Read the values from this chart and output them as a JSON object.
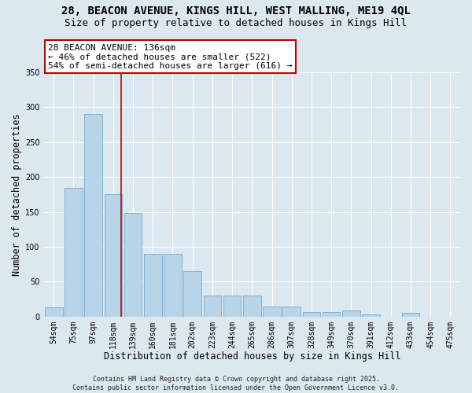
{
  "title_line1": "28, BEACON AVENUE, KINGS HILL, WEST MALLING, ME19 4QL",
  "title_line2": "Size of property relative to detached houses in Kings Hill",
  "xlabel": "Distribution of detached houses by size in Kings Hill",
  "ylabel": "Number of detached properties",
  "categories": [
    "54sqm",
    "75sqm",
    "97sqm",
    "118sqm",
    "139sqm",
    "160sqm",
    "181sqm",
    "202sqm",
    "223sqm",
    "244sqm",
    "265sqm",
    "286sqm",
    "307sqm",
    "328sqm",
    "349sqm",
    "370sqm",
    "391sqm",
    "412sqm",
    "433sqm",
    "454sqm",
    "475sqm"
  ],
  "values": [
    13,
    185,
    290,
    175,
    148,
    90,
    90,
    65,
    30,
    30,
    30,
    14,
    14,
    6,
    7,
    9,
    3,
    0,
    5,
    0,
    0
  ],
  "bar_color": "#b8d4e8",
  "bar_edge_color": "#7aaac8",
  "vline_color": "#c00000",
  "vline_x": 3.42,
  "annotation_text": "28 BEACON AVENUE: 136sqm\n← 46% of detached houses are smaller (522)\n54% of semi-detached houses are larger (616) →",
  "annotation_box_facecolor": "#ffffff",
  "annotation_box_edgecolor": "#c00000",
  "ylim": [
    0,
    350
  ],
  "yticks": [
    0,
    50,
    100,
    150,
    200,
    250,
    300,
    350
  ],
  "footer": "Contains HM Land Registry data © Crown copyright and database right 2025.\nContains public sector information licensed under the Open Government Licence v3.0.",
  "bg_color": "#dce8f0",
  "plot_bg_color": "#dce8f0",
  "title_fontsize": 10,
  "subtitle_fontsize": 9,
  "axis_label_fontsize": 8.5,
  "tick_fontsize": 7,
  "annotation_fontsize": 8,
  "footer_fontsize": 6
}
